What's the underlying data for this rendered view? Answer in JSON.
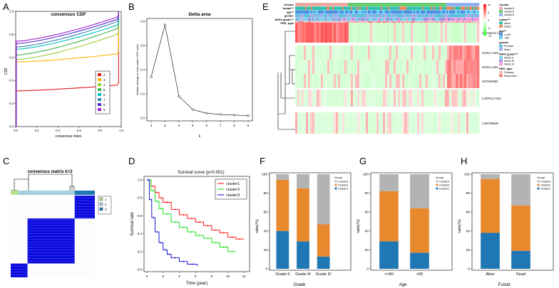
{
  "panel_letters": [
    "A",
    "B",
    "C",
    "D",
    "E",
    "F",
    "G",
    "H"
  ],
  "chart_data": [
    {
      "id": "A",
      "type": "line",
      "title": "consensus CDF",
      "xlabel": "consensus index",
      "ylabel": "CDF",
      "xlim": [
        0,
        1
      ],
      "ylim": [
        0,
        1
      ],
      "xticks": [
        "0.0",
        "0.2",
        "0.4",
        "0.6",
        "0.8",
        "1.0"
      ],
      "yticks": [
        "0.0",
        "0.2",
        "0.4",
        "0.6",
        "0.8",
        "1.0"
      ],
      "legend": [
        "2",
        "3",
        "4",
        "5",
        "6",
        "7",
        "8",
        "9"
      ],
      "legend_position": "bottom-right",
      "colors": [
        "#e41a1c",
        "#ffb400",
        "#9acd32",
        "#3cb44b",
        "#00c0c0",
        "#377eb8",
        "#4b2bd0",
        "#a020c8"
      ],
      "series": [
        {
          "name": "2",
          "start": 0.31,
          "end": 0.36
        },
        {
          "name": "3",
          "start": 0.56,
          "end": 0.63
        },
        {
          "name": "4",
          "start": 0.58,
          "end": 0.8
        },
        {
          "name": "5",
          "start": 0.62,
          "end": 0.85
        },
        {
          "name": "6",
          "start": 0.67,
          "end": 0.88
        },
        {
          "name": "7",
          "start": 0.69,
          "end": 0.91
        },
        {
          "name": "8",
          "start": 0.72,
          "end": 0.93
        },
        {
          "name": "9",
          "start": 0.74,
          "end": 0.95
        }
      ]
    },
    {
      "id": "B",
      "type": "line",
      "title": "Delta area",
      "xlabel": "k",
      "ylabel": "relative change in area under CDF curve",
      "x": [
        2,
        3,
        4,
        5,
        6,
        7,
        8,
        9
      ],
      "y": [
        0.34,
        0.77,
        0.18,
        0.07,
        0.04,
        0.03,
        0.025,
        0.02
      ],
      "xlim": [
        2,
        9
      ],
      "ylim": [
        0,
        0.8
      ],
      "yticks": [
        "0.0",
        "0.2",
        "0.4",
        "0.6",
        "0.8"
      ]
    },
    {
      "id": "C",
      "type": "heatmap",
      "title": "consensus matrix k=3",
      "legend": [
        "1",
        "2",
        "3"
      ],
      "cluster_colors": [
        "#b8e08a",
        "#a6cee3",
        "#1f78b4"
      ],
      "blocks": [
        {
          "cluster": "1",
          "from": 0.0,
          "to": 0.09
        },
        {
          "cluster": "2",
          "from": 0.09,
          "to": 0.76
        },
        {
          "cluster": "3",
          "from": 0.76,
          "to": 1.0
        }
      ]
    },
    {
      "id": "D",
      "type": "line",
      "title": "Survival curve (p<0.001)",
      "xlabel": "Time (year)",
      "ylabel": "Survival rate",
      "xticks": [
        "0",
        "2",
        "4",
        "6",
        "8",
        "10",
        "12"
      ],
      "yticks": [
        "0.0",
        "0.2",
        "0.4",
        "0.6",
        "0.8",
        "1.0"
      ],
      "xlim": [
        0,
        12.5
      ],
      "ylim": [
        0,
        1
      ],
      "series": [
        {
          "name": "cluster1",
          "color": "#ff0000",
          "x": [
            0,
            0.5,
            1,
            1.5,
            2,
            3,
            4,
            5,
            6,
            7,
            8,
            9,
            10,
            11,
            12
          ],
          "y": [
            1,
            0.93,
            0.86,
            0.8,
            0.75,
            0.67,
            0.61,
            0.57,
            0.53,
            0.49,
            0.44,
            0.41,
            0.36,
            0.34,
            0.34
          ]
        },
        {
          "name": "cluster2",
          "color": "#00dd00",
          "x": [
            0,
            0.5,
            1,
            1.5,
            2,
            3,
            4,
            5,
            6,
            7,
            8,
            9,
            10,
            11
          ],
          "y": [
            1,
            0.88,
            0.76,
            0.68,
            0.62,
            0.53,
            0.47,
            0.42,
            0.38,
            0.35,
            0.3,
            0.25,
            0.2,
            0.2
          ]
        },
        {
          "name": "cluster3",
          "color": "#0000cc",
          "x": [
            0,
            0.3,
            0.6,
            1,
            1.5,
            2,
            2.5,
            3,
            4,
            5,
            6.2
          ],
          "y": [
            1,
            0.78,
            0.58,
            0.42,
            0.3,
            0.22,
            0.17,
            0.13,
            0.09,
            0.06,
            0.04
          ]
        }
      ]
    },
    {
      "id": "E",
      "type": "heatmap",
      "annotation_rows": [
        "Cluster",
        "fustat***",
        "age**",
        "gender",
        "WHO grade***",
        "PRS_type"
      ],
      "genes": [
        "SLC26A4-AS1",
        "HOXA-AS3",
        "HOXA-AS2",
        "HOTAIRM1",
        "LHFPL3-AS1",
        "LINC00945"
      ],
      "colorbar_ticks": [
        "10",
        "5",
        "0",
        "-5",
        "-10"
      ],
      "legend_groups": [
        {
          "title": "Cluster",
          "items": [
            {
              "label": "cluster1",
              "color": "#f0a6a0"
            },
            {
              "label": "cluster2",
              "color": "#63c96a"
            },
            {
              "label": "cluster3",
              "color": "#8fb0f0"
            }
          ]
        },
        {
          "title": "fustat***",
          "items": [
            {
              "label": "Alive",
              "color": "#30c4b0"
            },
            {
              "label": "Dead",
              "color": "#f08a60"
            }
          ]
        },
        {
          "title": "age**",
          "items": [
            {
              "label": "<=60",
              "color": "#4a90e2"
            },
            {
              "label": ">60",
              "color": "#62d0f0"
            }
          ]
        },
        {
          "title": "gender",
          "items": [
            {
              "label": "Female",
              "color": "#5bc0de"
            },
            {
              "label": "Male",
              "color": "#9ab0e8"
            }
          ]
        },
        {
          "title": "WHO grade***",
          "items": [
            {
              "label": "WHO II",
              "color": "#7dd1e8"
            },
            {
              "label": "WHO III",
              "color": "#a390e0"
            },
            {
              "label": "WHO IV",
              "color": "#f29ad8"
            }
          ]
        },
        {
          "title": "PRS_type",
          "items": [
            {
              "label": "Primary",
              "color": "#f8b8b8"
            },
            {
              "label": "Recurrent",
              "color": "#f08080"
            }
          ]
        }
      ]
    },
    {
      "id": "F",
      "type": "bar",
      "stacked": true,
      "xlabel": "Grade",
      "ylabel": "ratio(%)",
      "categories": [
        "Grade II",
        "Grade III",
        "Grade IV"
      ],
      "yticks": [
        "0",
        "20",
        "40",
        "60",
        "80",
        "100"
      ],
      "ylim": [
        0,
        100
      ],
      "legend_title": "Group",
      "series": [
        {
          "name": "Cluster1",
          "color": "#1f77b4",
          "values": [
            40,
            29,
            13
          ]
        },
        {
          "name": "Cluster2",
          "color": "#e8892e",
          "values": [
            54,
            56,
            34
          ]
        },
        {
          "name": "Cluster3",
          "color": "#b3b3b3",
          "values": [
            6,
            15,
            53
          ]
        }
      ]
    },
    {
      "id": "G",
      "type": "bar",
      "stacked": true,
      "xlabel": "Age",
      "ylabel": "ratio(%)",
      "categories": [
        "<=60",
        ">60"
      ],
      "yticks": [
        "0",
        "20",
        "40",
        "60",
        "80",
        "100"
      ],
      "ylim": [
        0,
        100
      ],
      "legend_title": "Group",
      "series": [
        {
          "name": "Cluster1",
          "color": "#1f77b4",
          "values": [
            29,
            17
          ]
        },
        {
          "name": "Cluster2",
          "color": "#e8892e",
          "values": [
            53,
            47
          ]
        },
        {
          "name": "Cluster3",
          "color": "#b3b3b3",
          "values": [
            18,
            36
          ]
        }
      ]
    },
    {
      "id": "H",
      "type": "bar",
      "stacked": true,
      "xlabel": "Fustat",
      "ylabel": "ratio(%)",
      "categories": [
        "Alive",
        "Dead"
      ],
      "yticks": [
        "0",
        "20",
        "40",
        "60",
        "80",
        "100"
      ],
      "ylim": [
        0,
        100
      ],
      "legend_title": "Group",
      "series": [
        {
          "name": "Cluster1",
          "color": "#1f77b4",
          "values": [
            38,
            19
          ]
        },
        {
          "name": "Cluster2",
          "color": "#e8892e",
          "values": [
            57,
            48
          ]
        },
        {
          "name": "Cluster3",
          "color": "#b3b3b3",
          "values": [
            5,
            33
          ]
        }
      ]
    }
  ]
}
